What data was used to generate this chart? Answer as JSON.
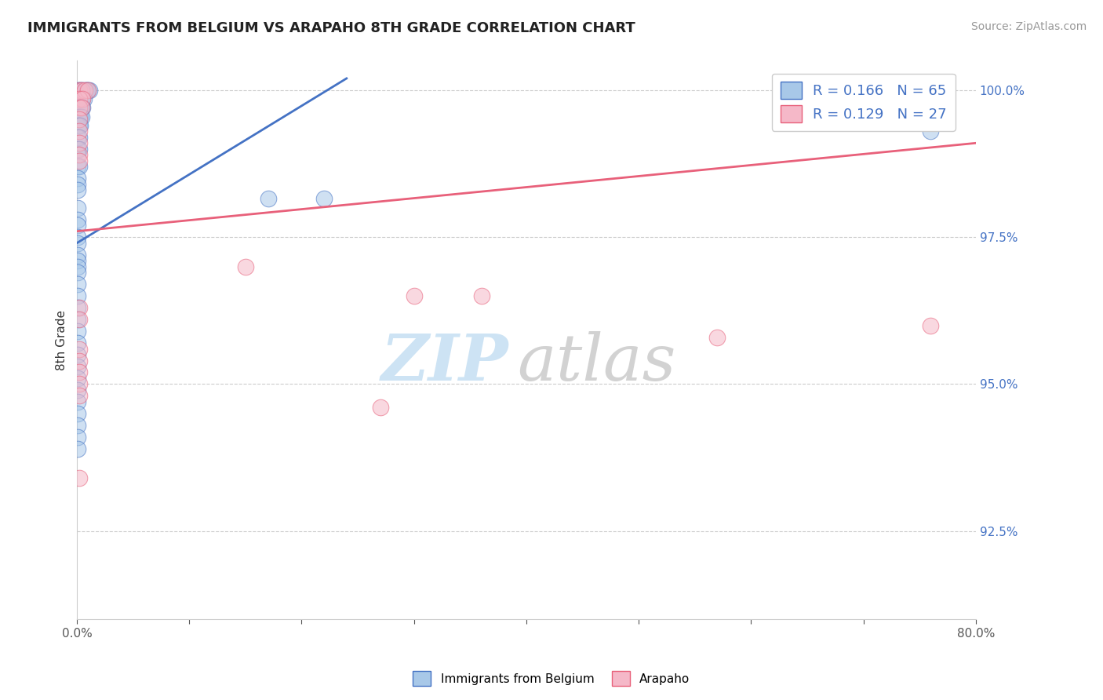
{
  "title": "IMMIGRANTS FROM BELGIUM VS ARAPAHO 8TH GRADE CORRELATION CHART",
  "source_text": "Source: ZipAtlas.com",
  "ylabel": "8th Grade",
  "xlim": [
    0.0,
    0.8
  ],
  "ylim": [
    0.91,
    1.005
  ],
  "ytick_labels": [
    "92.5%",
    "95.0%",
    "97.5%",
    "100.0%"
  ],
  "ytick_positions": [
    0.925,
    0.95,
    0.975,
    1.0
  ],
  "xtick_positions": [
    0.0,
    0.1,
    0.2,
    0.3,
    0.4,
    0.5,
    0.6,
    0.7,
    0.8
  ],
  "xtick_labels": [
    "0.0%",
    "",
    "",
    "",
    "",
    "",
    "",
    "",
    "80.0%"
  ],
  "blue_color": "#a8c8e8",
  "pink_color": "#f5b8c8",
  "blue_line_color": "#4472c4",
  "pink_line_color": "#e8607a",
  "legend_R1": "0.166",
  "legend_N1": "65",
  "legend_R2": "0.129",
  "legend_N2": "27",
  "blue_line_x0": 0.0,
  "blue_line_y0": 0.974,
  "blue_line_x1": 0.24,
  "blue_line_y1": 1.002,
  "pink_line_x0": 0.0,
  "pink_line_y0": 0.976,
  "pink_line_x1": 0.8,
  "pink_line_y1": 0.991,
  "blue_scatter_x": [
    0.001,
    0.002,
    0.003,
    0.004,
    0.005,
    0.007,
    0.008,
    0.009,
    0.01,
    0.011,
    0.001,
    0.002,
    0.003,
    0.004,
    0.005,
    0.006,
    0.001,
    0.002,
    0.003,
    0.004,
    0.005,
    0.001,
    0.002,
    0.003,
    0.004,
    0.001,
    0.002,
    0.003,
    0.001,
    0.002,
    0.001,
    0.002,
    0.001,
    0.001,
    0.002,
    0.001,
    0.001,
    0.001,
    0.17,
    0.22,
    0.001,
    0.001,
    0.001,
    0.001,
    0.001,
    0.001,
    0.001,
    0.001,
    0.001,
    0.001,
    0.001,
    0.001,
    0.001,
    0.001,
    0.001,
    0.001,
    0.001,
    0.001,
    0.001,
    0.001,
    0.001,
    0.001,
    0.001,
    0.001,
    0.76
  ],
  "blue_scatter_y": [
    1.0,
    1.0,
    1.0,
    1.0,
    1.0,
    1.0,
    1.0,
    1.0,
    1.0,
    1.0,
    0.9985,
    0.9985,
    0.9985,
    0.9985,
    0.9985,
    0.9985,
    0.997,
    0.997,
    0.997,
    0.997,
    0.997,
    0.9955,
    0.9955,
    0.9955,
    0.9955,
    0.994,
    0.994,
    0.994,
    0.992,
    0.992,
    0.99,
    0.99,
    0.989,
    0.987,
    0.987,
    0.985,
    0.984,
    0.983,
    0.9815,
    0.9815,
    0.98,
    0.978,
    0.977,
    0.975,
    0.974,
    0.972,
    0.971,
    0.97,
    0.969,
    0.967,
    0.965,
    0.963,
    0.961,
    0.959,
    0.957,
    0.955,
    0.953,
    0.951,
    0.949,
    0.947,
    0.945,
    0.943,
    0.941,
    0.939,
    0.993
  ],
  "pink_scatter_x": [
    0.002,
    0.004,
    0.007,
    0.01,
    0.002,
    0.005,
    0.002,
    0.004,
    0.002,
    0.002,
    0.002,
    0.002,
    0.002,
    0.15,
    0.3,
    0.36,
    0.002,
    0.002,
    0.76,
    0.57,
    0.002,
    0.002,
    0.002,
    0.002,
    0.002,
    0.27,
    0.002
  ],
  "pink_scatter_y": [
    1.0,
    1.0,
    1.0,
    1.0,
    0.9985,
    0.9985,
    0.997,
    0.997,
    0.995,
    0.993,
    0.991,
    0.989,
    0.988,
    0.97,
    0.965,
    0.965,
    0.963,
    0.961,
    0.96,
    0.958,
    0.956,
    0.954,
    0.952,
    0.95,
    0.948,
    0.946,
    0.934
  ]
}
